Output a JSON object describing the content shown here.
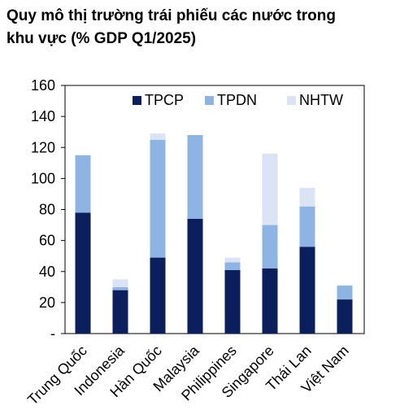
{
  "header": {
    "title_line1": "Quy mô thị trường trái phiếu các nước trong",
    "title_line2": "khu vực (% GDP Q1/2025)"
  },
  "colors": {
    "TPCP": "#0b1f5c",
    "TPDN": "#8eb4e3",
    "NHTW": "#dbe4f5"
  },
  "chart_data": {
    "type": "bar",
    "stacked": true,
    "title": "Quy mô thị trường trái phiếu các nước trong khu vực (% GDP Q1/2025)",
    "categories": [
      "Trung Quốc",
      "Indonesia",
      "Hàn Quốc",
      "Malaysia",
      "Philippines",
      "Singapore",
      "Thái Lan",
      "Việt Nam"
    ],
    "series": [
      {
        "name": "TPCP",
        "values": [
          78,
          28,
          49,
          74,
          41,
          42,
          56,
          22
        ]
      },
      {
        "name": "TPDN",
        "values": [
          37,
          2,
          76,
          54,
          5,
          28,
          26,
          9
        ]
      },
      {
        "name": "NHTW",
        "values": [
          0,
          5,
          4,
          0,
          3,
          46,
          12,
          0
        ]
      }
    ],
    "ylim": [
      0,
      160
    ],
    "yticks": [
      "-",
      "20",
      "40",
      "60",
      "80",
      "100",
      "120",
      "140",
      "160"
    ],
    "legend": "top-right",
    "grid": false,
    "xlabel": "",
    "ylabel": ""
  }
}
